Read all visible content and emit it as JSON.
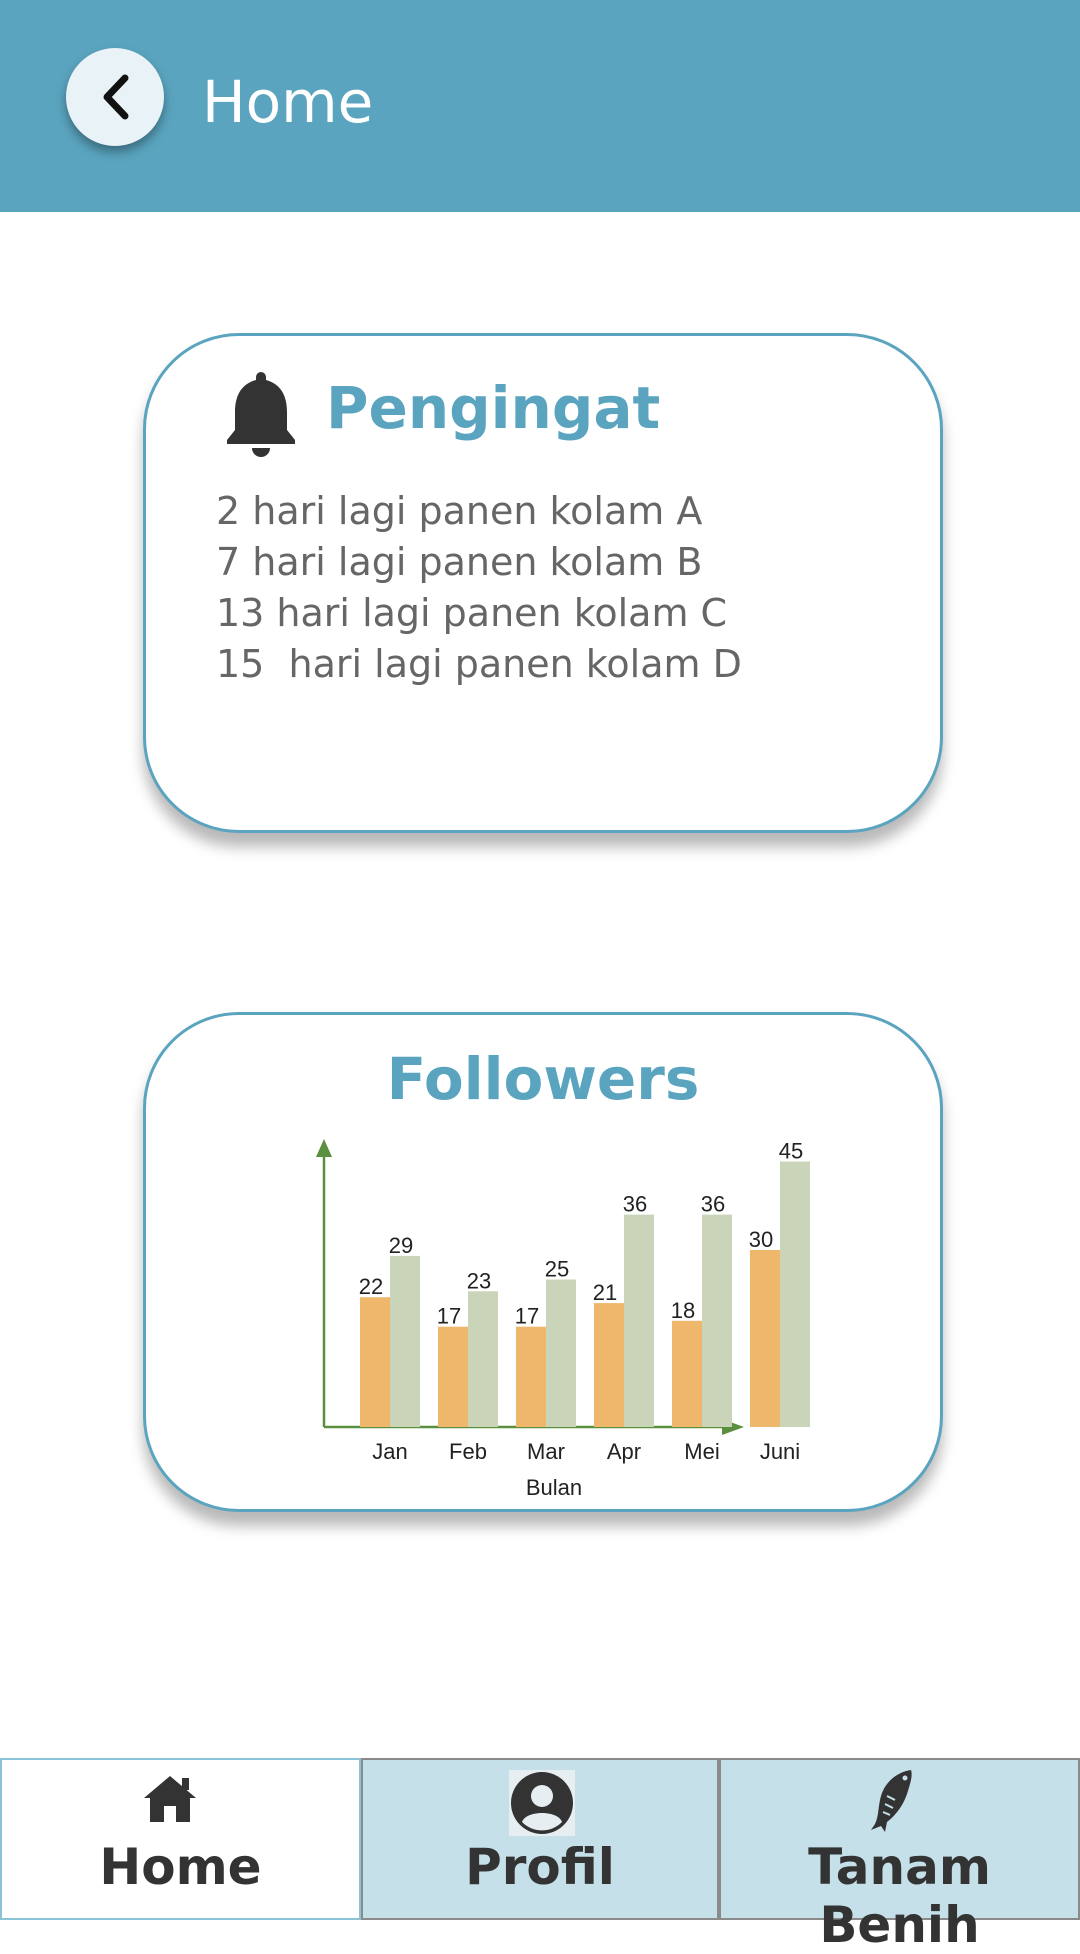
{
  "appbar": {
    "title": "Home"
  },
  "reminder": {
    "title": "Pengingat",
    "items": [
      "2 hari lagi panen kolam A",
      "7 hari lagi panen kolam B",
      "13 hari lagi panen kolam C",
      "15  hari lagi panen kolam D"
    ]
  },
  "followers": {
    "title": "Followers",
    "chart_data": {
      "type": "bar",
      "categories": [
        "Jan",
        "Feb",
        "Mar",
        "Apr",
        "Mei",
        "Juni"
      ],
      "series": [
        {
          "values": [
            22,
            17,
            17,
            21,
            18,
            30
          ],
          "color": "#efb76b"
        },
        {
          "values": [
            29,
            23,
            25,
            36,
            36,
            45
          ],
          "color": "#c9d4b9"
        }
      ],
      "xlabel": "Bulan",
      "ylabel": "",
      "axis_color": "#5a8f3e"
    }
  },
  "nav": {
    "home": {
      "label": "Home",
      "icon": "home-icon"
    },
    "profil": {
      "label": "Profil",
      "icon": "user-icon"
    },
    "tanam": {
      "label": "Tanam Benih",
      "icon": "fish-icon"
    }
  },
  "colors": {
    "primary": "#5aa4bf",
    "nav_bg": "#c5e0e8"
  }
}
